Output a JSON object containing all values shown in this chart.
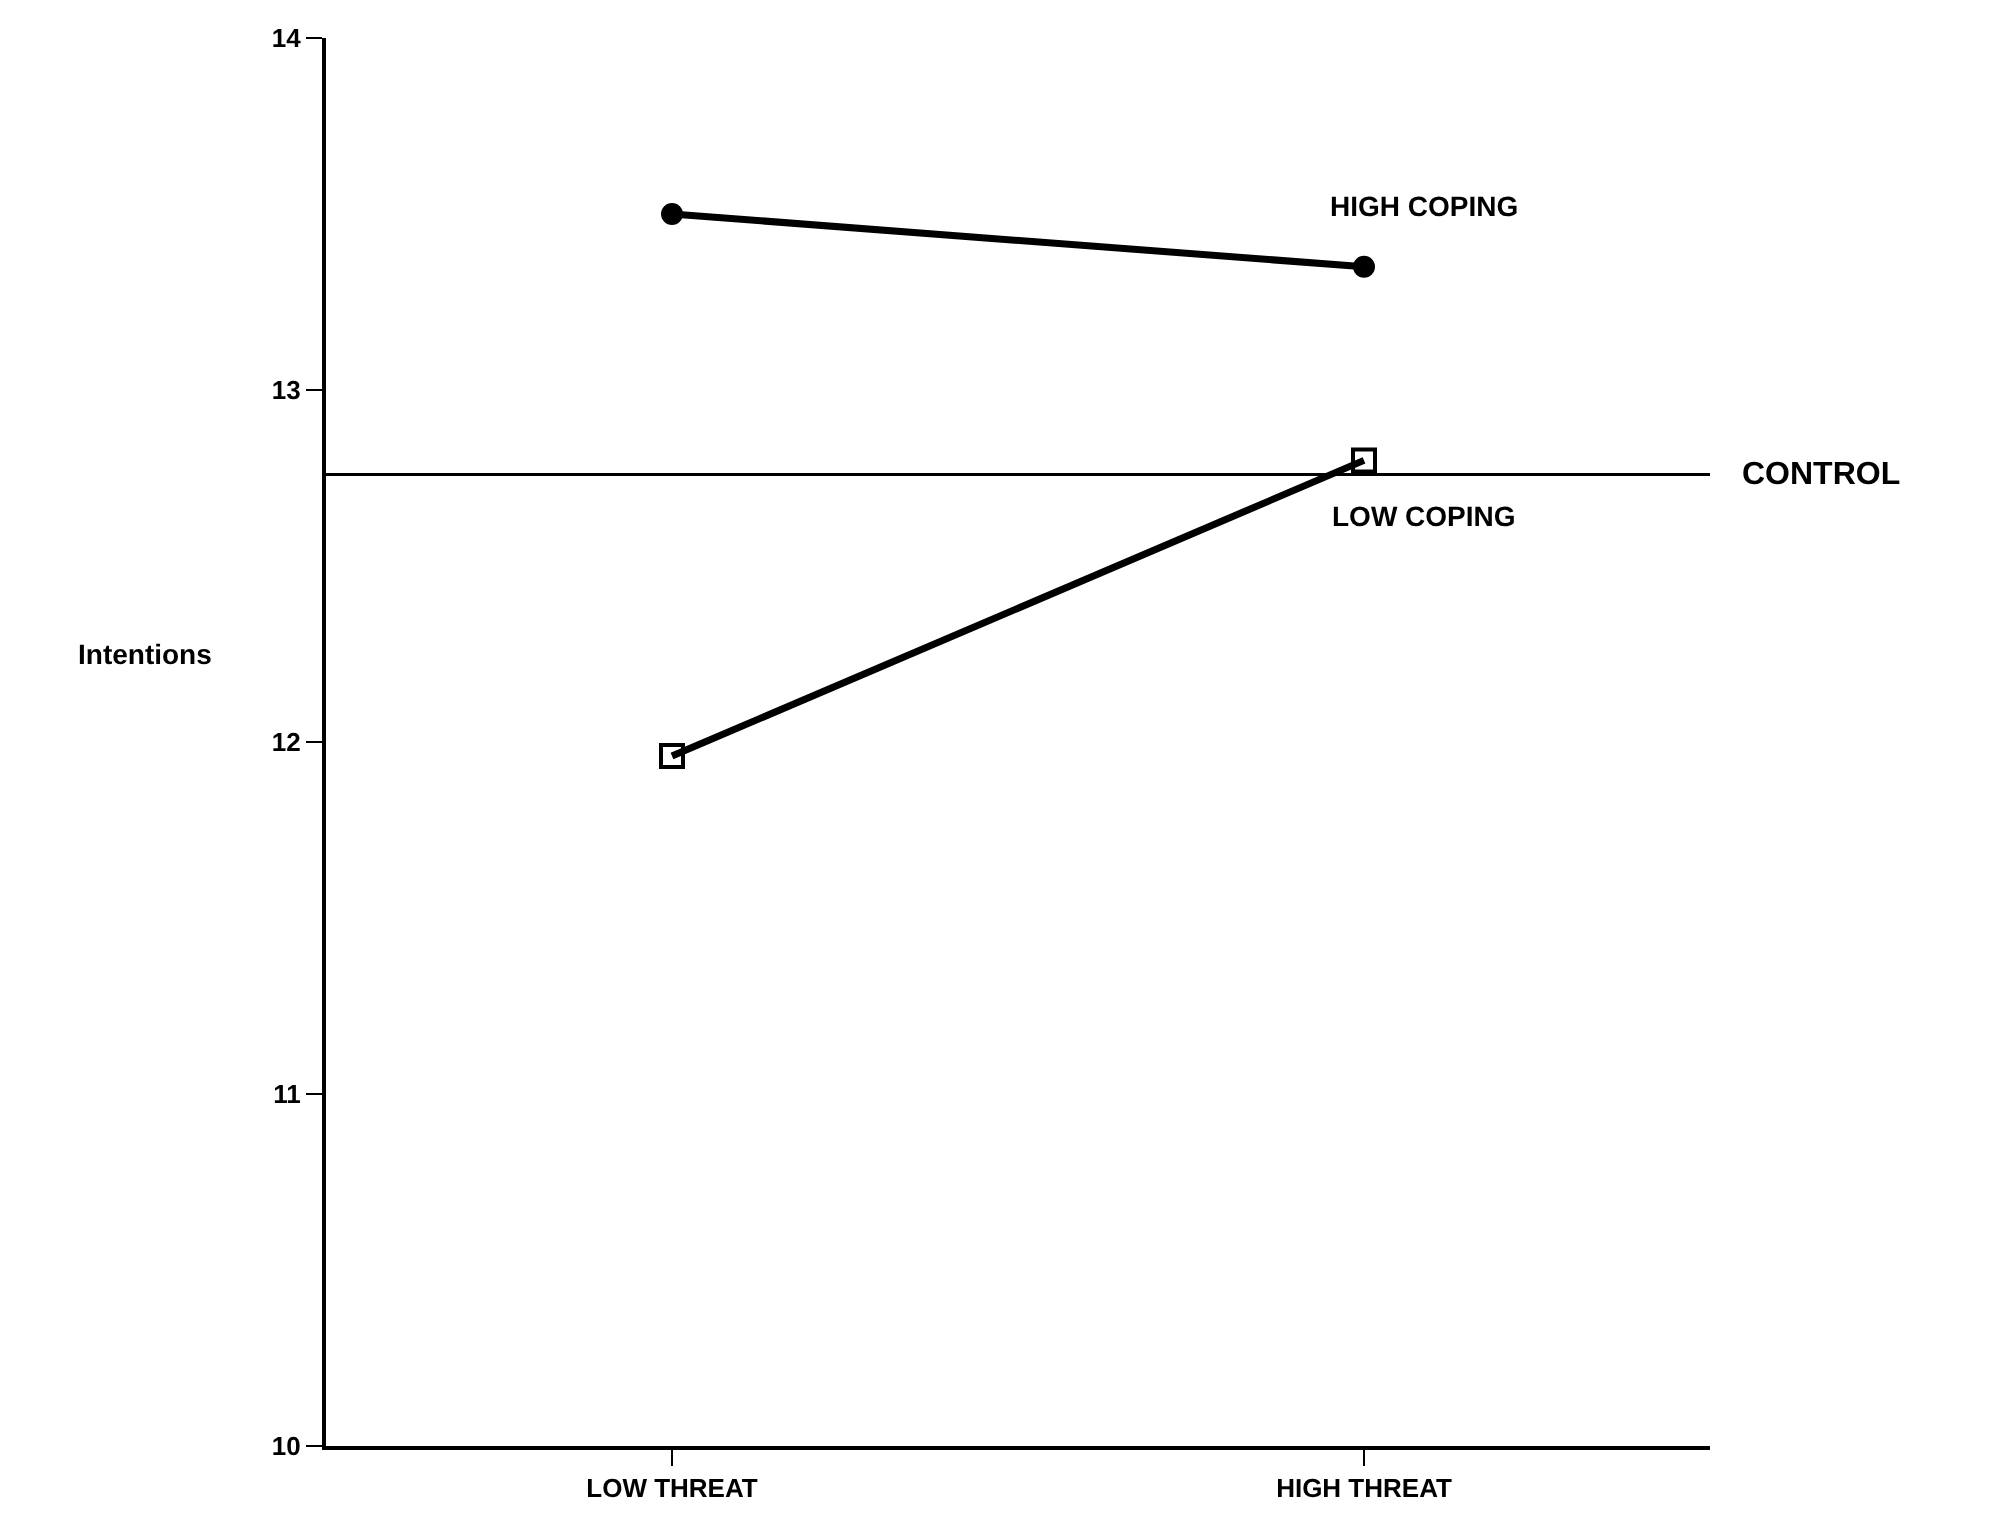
{
  "chart_data": {
    "type": "line",
    "ylabel": "Intentions",
    "categories": [
      "LOW THREAT",
      "HIGH THREAT"
    ],
    "series": [
      {
        "name": "HIGH COPING",
        "color": "#000000",
        "marker": "circle",
        "values": [
          13.5,
          13.35
        ]
      },
      {
        "name": "LOW COPING",
        "color": "#000000",
        "marker": "square",
        "values": [
          11.96,
          12.8
        ]
      }
    ],
    "ylim": [
      10,
      14
    ],
    "yticks": [
      10,
      11,
      12,
      13,
      14
    ],
    "legend": false,
    "ref_lines": [
      {
        "axis": "y",
        "value": 12.76,
        "label": "CONTROL",
        "color": "#000000"
      }
    ]
  }
}
